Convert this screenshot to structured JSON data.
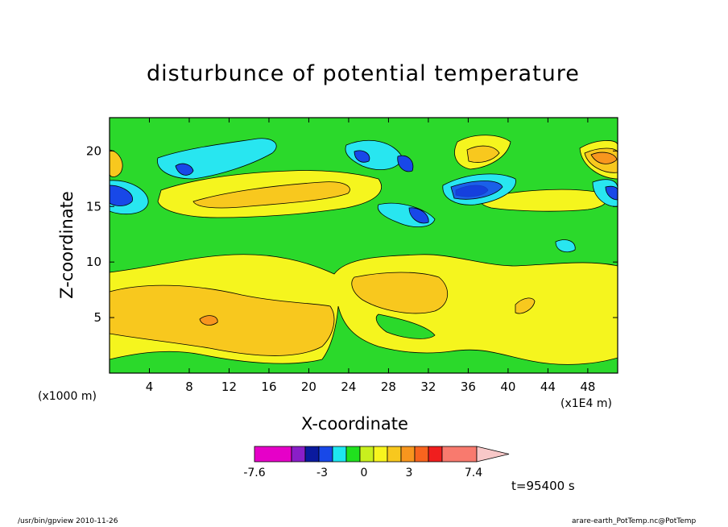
{
  "chart_data": {
    "type": "heatmap",
    "title": "disturbunce of potential temperature",
    "xlabel": "X-coordinate",
    "ylabel": "Z-coordinate",
    "x_unit_left": "(x1000 m)",
    "x_unit_right": "(x1E4 m)",
    "x_ticks": [
      4,
      8,
      12,
      16,
      20,
      24,
      28,
      32,
      36,
      40,
      44,
      48
    ],
    "y_ticks": [
      5,
      10,
      15,
      20
    ],
    "xlim": [
      0,
      51
    ],
    "ylim": [
      0,
      23
    ],
    "colorbar": {
      "labels": [
        "-7.6",
        "-3",
        "0",
        "3",
        "7.4"
      ],
      "colors": [
        "#e600c8",
        "#8a1ec8",
        "#0a1a9e",
        "#1848e8",
        "#1ee6f0",
        "#20e01e",
        "#c8f01e",
        "#f8f51e",
        "#f8c81e",
        "#f8961e",
        "#f8641e",
        "#f01e1e",
        "#f87a6e",
        "#f8c8c8"
      ]
    },
    "fill_colors": {
      "background": "#2bd92b",
      "yellow": "#f5f51e",
      "lightyellow": "#e8f51e",
      "orange": "#f8c81e",
      "darkorange": "#f8961e",
      "red": "#f05a1e",
      "cyan": "#28e6f0",
      "blue": "#1848e8",
      "darkblue": "#0a1a9e"
    }
  },
  "annotations": {
    "time": "t=95400 s",
    "footer_left": "/usr/bin/gpview  2010-11-26",
    "footer_right": "arare-earth_PotTemp.nc@PotTemp"
  }
}
